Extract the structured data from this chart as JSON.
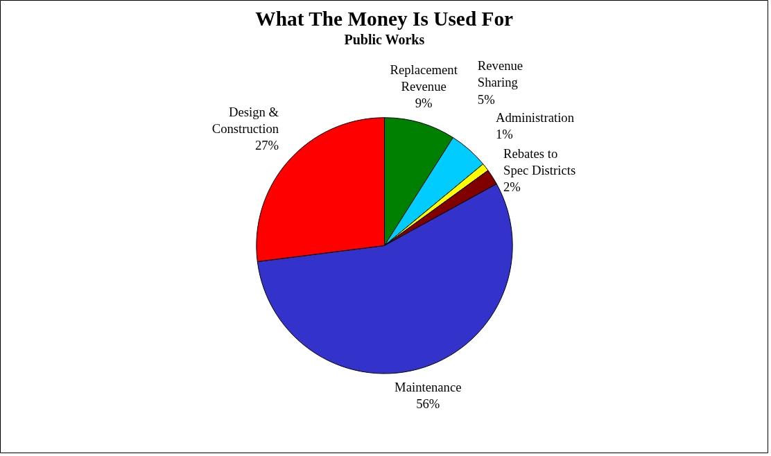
{
  "chart_data": {
    "type": "pie",
    "title": "What The Money Is Used For",
    "subtitle": "Public Works",
    "categories": [
      "Replacement Revenue",
      "Revenue Sharing",
      "Administration",
      "Rebates to Spec Districts",
      "Maintenance",
      "Design & Construction"
    ],
    "values": [
      9,
      5,
      1,
      2,
      56,
      27
    ],
    "value_labels": [
      "9%",
      "5%",
      "1%",
      "2%",
      "56%",
      "27%"
    ],
    "colors": [
      "#008000",
      "#00ccff",
      "#ffff00",
      "#800000",
      "#3333cc",
      "#ff0000"
    ]
  }
}
